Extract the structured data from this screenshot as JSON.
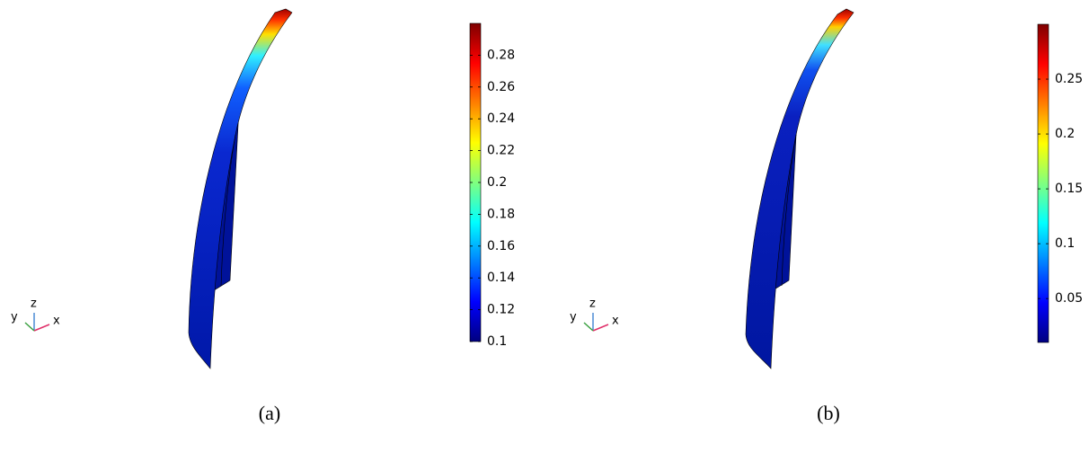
{
  "panels": [
    {
      "caption": "(a)",
      "axes": {
        "y": "y",
        "z": "z",
        "x": "x"
      },
      "colorbar": {
        "lim": [
          0.1,
          0.3
        ],
        "ticks": [
          0.1,
          0.12,
          0.14,
          0.16,
          0.18,
          0.2,
          0.22,
          0.24,
          0.26,
          0.28
        ]
      }
    },
    {
      "caption": "(b)",
      "axes": {
        "y": "y",
        "z": "z",
        "x": "x"
      },
      "colorbar": {
        "lim": [
          0.01,
          0.3
        ],
        "ticks": [
          0.05,
          0.1,
          0.15,
          0.2,
          0.25
        ]
      }
    }
  ]
}
